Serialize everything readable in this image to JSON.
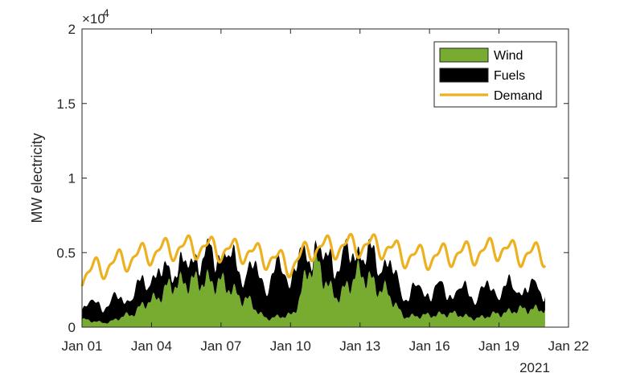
{
  "chart_data": {
    "type": "area",
    "ylabel": "MW electricity",
    "y_exponent_label": "×10",
    "y_exponent": "4",
    "x_year_label": "2021",
    "ylim": [
      0,
      20000
    ],
    "y_ticks": [
      0,
      5000,
      10000,
      15000,
      20000
    ],
    "y_tick_labels": [
      "0",
      "0.5",
      "1",
      "1.5",
      "2"
    ],
    "x_ticks": [
      "Jan 01",
      "Jan 04",
      "Jan 07",
      "Jan 10",
      "Jan 13",
      "Jan 16",
      "Jan 19",
      "Jan 22"
    ],
    "xlim": [
      "2021-01-01",
      "2021-01-22"
    ],
    "x_dates": [
      "2021-01-01",
      "2021-01-02",
      "2021-01-03",
      "2021-01-04",
      "2021-01-05",
      "2021-01-06",
      "2021-01-07",
      "2021-01-08",
      "2021-01-09",
      "2021-01-10",
      "2021-01-11",
      "2021-01-12",
      "2021-01-13",
      "2021-01-14",
      "2021-01-15",
      "2021-01-16",
      "2021-01-17",
      "2021-01-18",
      "2021-01-19",
      "2021-01-20"
    ],
    "legend_position": "top-right",
    "series": [
      {
        "name": "Wind",
        "kind": "stacked-area",
        "color": "#77ac30",
        "values": [
          500,
          300,
          800,
          1800,
          2900,
          3100,
          3000,
          1900,
          600,
          800,
          4300,
          2100,
          3600,
          2500,
          700,
          800,
          900,
          600,
          900,
          1200
        ]
      },
      {
        "name": "Fuels",
        "kind": "stacked-area",
        "color": "#000000",
        "values": [
          900,
          1300,
          1200,
          1600,
          1000,
          1500,
          2000,
          1900,
          2700,
          3100,
          700,
          2400,
          1400,
          1900,
          1600,
          1700,
          1500,
          1700,
          1700,
          1400
        ]
      },
      {
        "name": "Demand",
        "kind": "line",
        "color": "#edb120",
        "values": [
          3500,
          4100,
          4600,
          5000,
          5300,
          5400,
          5200,
          5100,
          4700,
          4200,
          5300,
          5400,
          5500,
          5400,
          4800,
          4700,
          4900,
          5000,
          5300,
          4900
        ]
      }
    ]
  }
}
